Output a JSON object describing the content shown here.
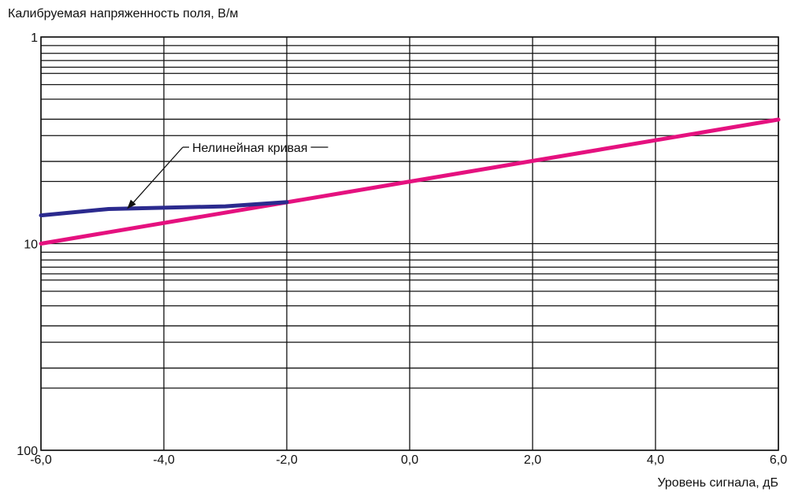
{
  "chart_data": {
    "type": "line",
    "ylabel": "Калибруемая напряженность поля, В/м",
    "xlabel": "Уровень сигнала, дБ",
    "x_scale": "linear",
    "y_scale": "log",
    "y_inverted": true,
    "xlim": [
      -6,
      6
    ],
    "ylim": [
      1,
      100
    ],
    "x_ticks": [
      {
        "value": -6,
        "label": "-6,0"
      },
      {
        "value": -4,
        "label": "-4,0"
      },
      {
        "value": -2,
        "label": "-2,0"
      },
      {
        "value": 0,
        "label": "0,0"
      },
      {
        "value": 2,
        "label": "2,0"
      },
      {
        "value": 4,
        "label": "4,0"
      },
      {
        "value": 6,
        "label": "6,0"
      }
    ],
    "y_ticks": [
      {
        "value": 1,
        "label": "1"
      },
      {
        "value": 10,
        "label": "10"
      },
      {
        "value": 100,
        "label": "100"
      }
    ],
    "y_minor_grid": [
      1,
      1.1,
      1.2,
      1.3,
      1.4,
      1.5,
      1.7,
      2,
      2.5,
      3,
      4,
      5,
      10,
      11,
      12,
      13,
      14,
      15,
      17,
      20,
      25,
      30,
      40,
      50,
      100
    ],
    "x_grid": [
      -6,
      -4,
      -2,
      0,
      2,
      4,
      6
    ],
    "grid": true,
    "series": [
      {
        "color": "#e5117f",
        "x": [
          -6.0,
          6.0
        ],
        "y": [
          10.0,
          2.51
        ]
      },
      {
        "color": "#2b2a8e",
        "x": [
          -6.0,
          -4.9,
          -3.0,
          -2.0
        ],
        "y": [
          7.3,
          6.8,
          6.6,
          6.3
        ]
      }
    ],
    "annotations": [
      {
        "text": "Нелинейная кривая",
        "target_x": -4.6,
        "target_y": 6.8
      }
    ]
  }
}
